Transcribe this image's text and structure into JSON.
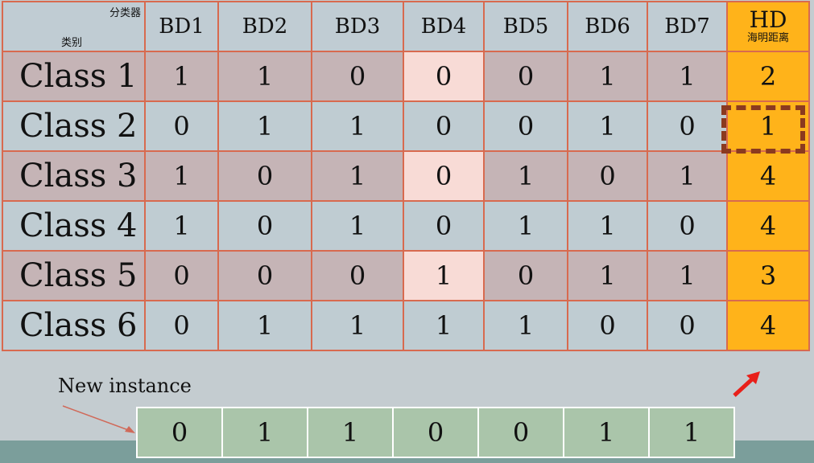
{
  "header": {
    "corner_top": "分类器",
    "corner_bottom": "类别",
    "columns": [
      "BD1",
      "BD2",
      "BD3",
      "BD4",
      "BD5",
      "BD6",
      "BD7"
    ],
    "hd_title": "HD",
    "hd_subtitle": "海明距离"
  },
  "rows": [
    {
      "label": "Class 1",
      "bits": [
        "1",
        "1",
        "0",
        "0",
        "0",
        "1",
        "1"
      ],
      "hd": "2"
    },
    {
      "label": "Class 2",
      "bits": [
        "0",
        "1",
        "1",
        "0",
        "0",
        "1",
        "0"
      ],
      "hd": "1"
    },
    {
      "label": "Class 3",
      "bits": [
        "1",
        "0",
        "1",
        "0",
        "1",
        "0",
        "1"
      ],
      "hd": "4"
    },
    {
      "label": "Class 4",
      "bits": [
        "1",
        "0",
        "1",
        "0",
        "1",
        "1",
        "0"
      ],
      "hd": "4"
    },
    {
      "label": "Class 5",
      "bits": [
        "0",
        "0",
        "0",
        "1",
        "0",
        "1",
        "1"
      ],
      "hd": "3"
    },
    {
      "label": "Class 6",
      "bits": [
        "0",
        "1",
        "1",
        "1",
        "1",
        "0",
        "0"
      ],
      "hd": "4"
    }
  ],
  "new_instance": {
    "label": "New instance",
    "bits": [
      "0",
      "1",
      "1",
      "0",
      "0",
      "1",
      "1"
    ]
  },
  "colors": {
    "hd_column": "#ffb31a",
    "highlight_border": "#8b3a1f",
    "arrow": "#e8201a"
  }
}
